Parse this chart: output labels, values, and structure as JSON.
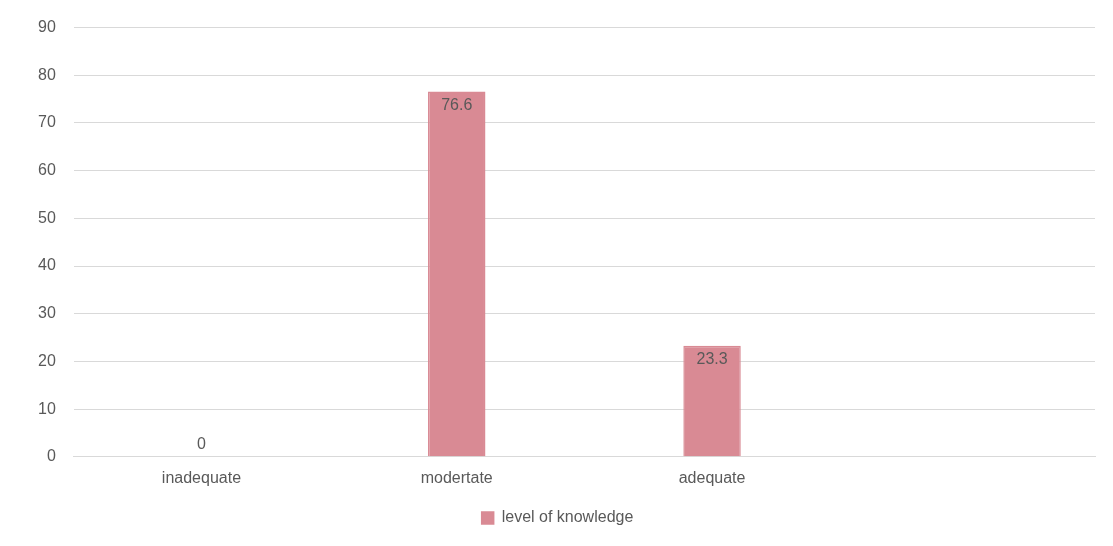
{
  "chart_data": {
    "type": "bar",
    "categories": [
      "inadequate",
      "modertate",
      "adequate",
      null
    ],
    "series": [
      {
        "name": "level of knowledge",
        "color": "#d98a94",
        "values": [
          0,
          76.6,
          23.3,
          null
        ]
      }
    ],
    "ylim": [
      0,
      90
    ],
    "yticks": [
      0,
      10,
      20,
      30,
      40,
      50,
      60,
      70,
      80,
      90
    ],
    "grid": "y",
    "legend": "bottom",
    "data_labels": true
  }
}
